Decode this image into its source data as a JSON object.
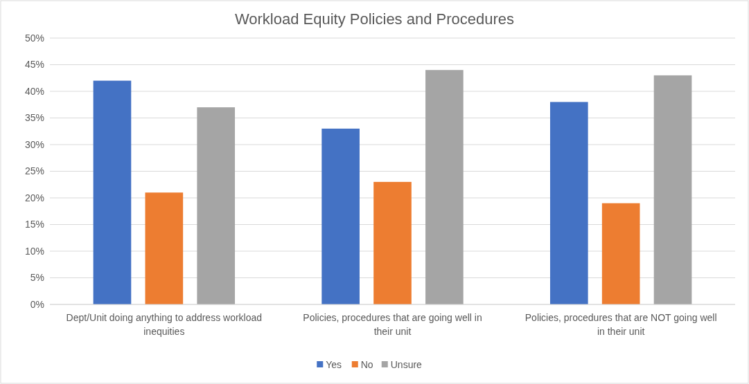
{
  "chart_data": {
    "type": "bar",
    "title": "Workload Equity Policies and Procedures",
    "categories": [
      "Dept/Unit doing anything to address workload inequities",
      "Policies, procedures that are going well in their unit",
      "Policies, procedures that are NOT going well in their unit"
    ],
    "series": [
      {
        "name": "Yes",
        "color": "#4472c4",
        "values": [
          42,
          33,
          38
        ]
      },
      {
        "name": "No",
        "color": "#ed7d31",
        "values": [
          21,
          23,
          19
        ]
      },
      {
        "name": "Unsure",
        "color": "#a5a5a5",
        "values": [
          37,
          44,
          43
        ]
      }
    ],
    "ylim": [
      0,
      50
    ],
    "yticks": [
      {
        "value": 0,
        "label": "0%"
      },
      {
        "value": 5,
        "label": "5%"
      },
      {
        "value": 10,
        "label": "10%"
      },
      {
        "value": 15,
        "label": "15%"
      },
      {
        "value": 20,
        "label": "20%"
      },
      {
        "value": 25,
        "label": "25%"
      },
      {
        "value": 30,
        "label": "30%"
      },
      {
        "value": 35,
        "label": "35%"
      },
      {
        "value": 40,
        "label": "40%"
      },
      {
        "value": 45,
        "label": "45%"
      },
      {
        "value": 50,
        "label": "50%"
      }
    ],
    "grid": "y",
    "legend": "bottom"
  }
}
